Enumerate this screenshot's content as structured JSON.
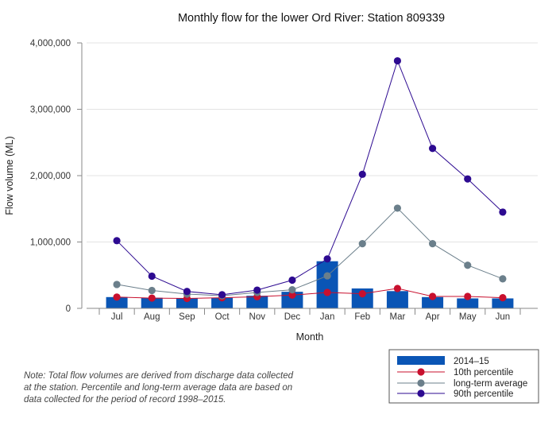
{
  "chart_data": {
    "type": "bar",
    "title": "Monthly flow for the lower Ord River: Station 809339",
    "xlabel": "Month",
    "ylabel": "Flow volume (ML)",
    "ylim": [
      0,
      4000000
    ],
    "yticks": [
      0,
      1000000,
      2000000,
      3000000,
      4000000
    ],
    "ytick_labels": [
      "0",
      "1,000,000",
      "2,000,000",
      "3,000,000",
      "4,000,000"
    ],
    "categories": [
      "Jul",
      "Aug",
      "Sep",
      "Oct",
      "Nov",
      "Dec",
      "Jan",
      "Feb",
      "Mar",
      "Apr",
      "May",
      "Jun"
    ],
    "series": [
      {
        "name": "2014–15",
        "kind": "bar",
        "color": "#0a55b5",
        "values": [
          170000,
          160000,
          155000,
          160000,
          190000,
          250000,
          710000,
          300000,
          260000,
          170000,
          150000,
          150000
        ]
      },
      {
        "name": "10th percentile",
        "kind": "line",
        "color": "#c8102e",
        "line_color": "#c8102e",
        "values": [
          170000,
          155000,
          150000,
          160000,
          175000,
          200000,
          240000,
          220000,
          300000,
          180000,
          180000,
          160000
        ]
      },
      {
        "name": "long-term average",
        "kind": "line",
        "color": "#6b7f8b",
        "line_color": "#6b7f8b",
        "values": [
          360000,
          270000,
          215000,
          190000,
          240000,
          280000,
          490000,
          975000,
          1510000,
          975000,
          650000,
          445000
        ]
      },
      {
        "name": "90th percentile",
        "kind": "line",
        "color": "#2d0a91",
        "line_color": "#2d0a91",
        "values": [
          1020000,
          485000,
          255000,
          205000,
          275000,
          425000,
          745000,
          2020000,
          3730000,
          2410000,
          1950000,
          1450000
        ]
      }
    ],
    "legend_position": "bottom-right",
    "note": [
      "Note: Total flow volumes are derived from discharge data collected",
      "at the station. Percentile and long-term average data are based on",
      "data collected for the period of record 1998–2015."
    ]
  }
}
